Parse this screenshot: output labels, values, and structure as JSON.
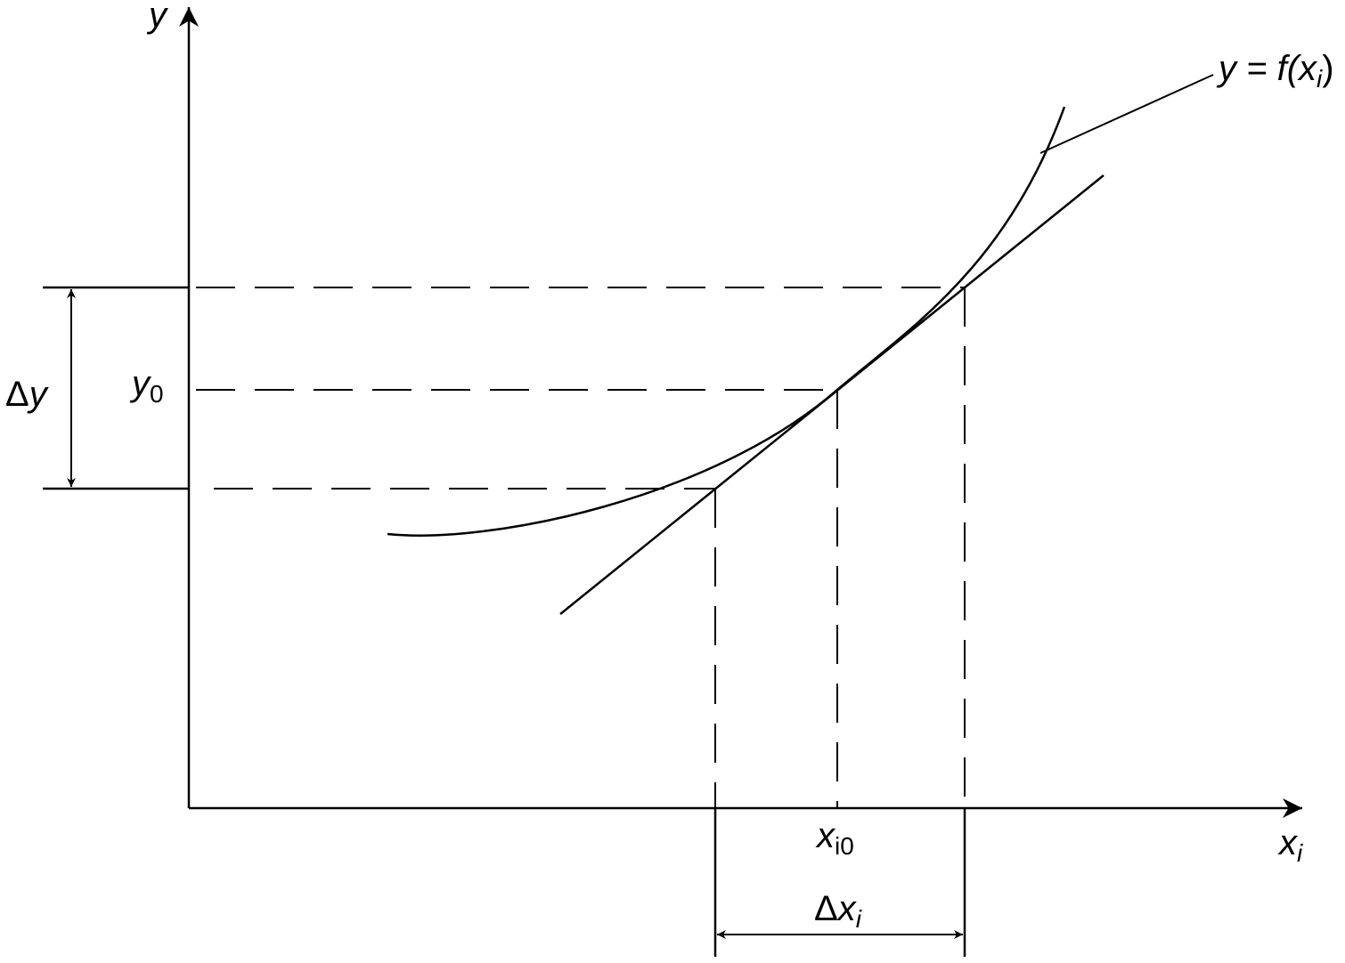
{
  "axes": {
    "y": "y",
    "x": {
      "main": "x",
      "sub": "i"
    }
  },
  "labels": {
    "curve": {
      "before": "y = f(x",
      "sub": "i",
      "after": ")"
    },
    "y0": {
      "main": "y",
      "sub": "0"
    },
    "delta_y": {
      "delta": "Δ",
      "main": "y"
    },
    "xi0": {
      "main": "x",
      "sub": "i0"
    },
    "delta_x": {
      "delta": "Δ",
      "main": "x",
      "sub": "i"
    }
  }
}
